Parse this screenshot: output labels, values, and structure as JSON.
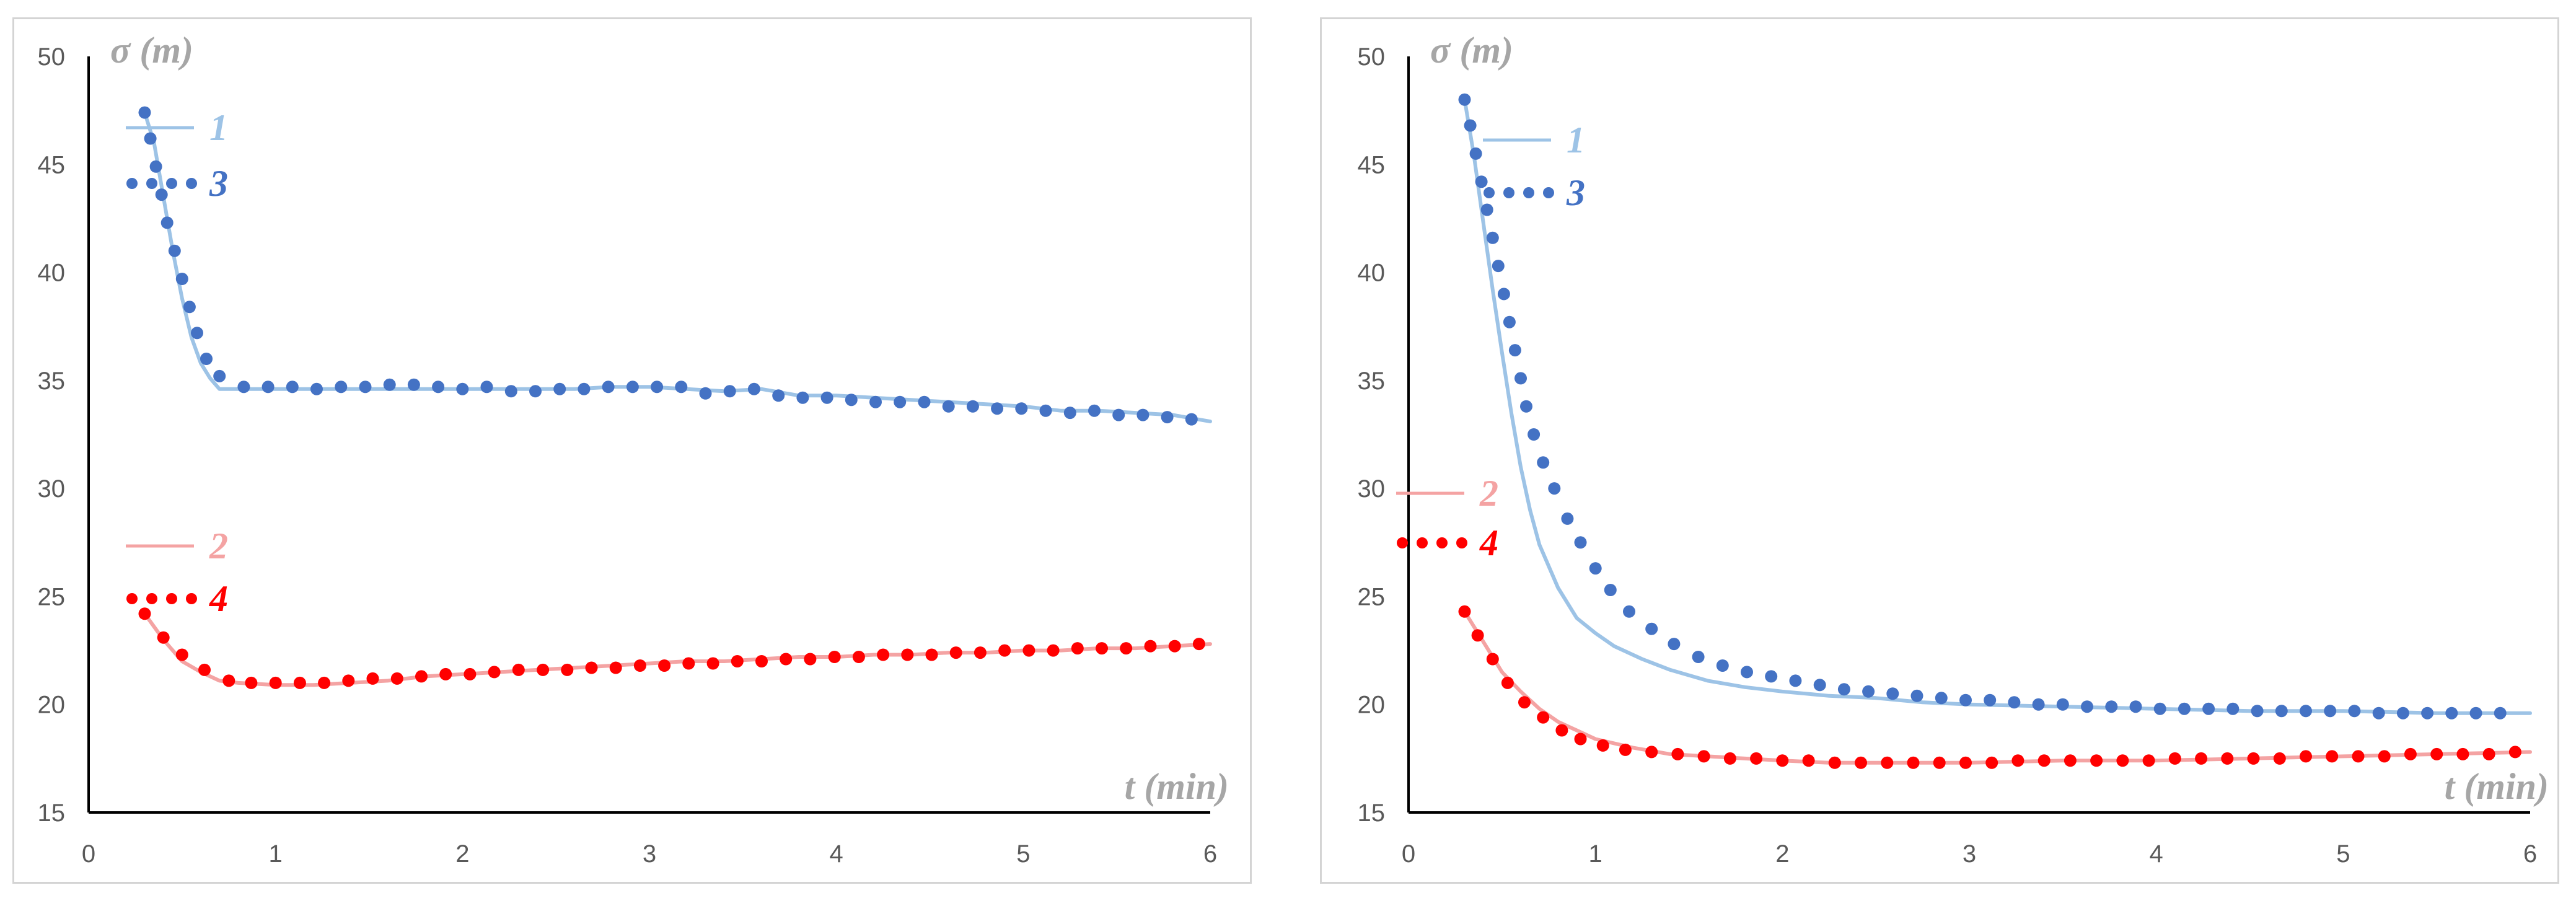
{
  "colors": {
    "curve1": "#9dc3e6",
    "curve2": "#f4a3a3",
    "curve3": "#4472c4",
    "curve4": "#ff0000",
    "axis": "#000000",
    "tick": "#595959",
    "title": "#a6a6a6"
  },
  "chart_data": [
    {
      "type": "line",
      "xlabel": "t (min)",
      "ylabel": "σ (m)",
      "xlim": [
        0,
        6
      ],
      "ylim": [
        15,
        50
      ],
      "xticks": [
        "0",
        "1",
        "2",
        "3",
        "4",
        "5",
        "6"
      ],
      "yticks": [
        "15",
        "20",
        "25",
        "30",
        "35",
        "40",
        "45",
        "50"
      ],
      "legend": [
        {
          "id": "1",
          "label": "1",
          "style": "line"
        },
        {
          "id": "3",
          "label": "3",
          "style": "dots"
        },
        {
          "id": "2",
          "label": "2",
          "style": "line"
        },
        {
          "id": "4",
          "label": "4",
          "style": "dots"
        }
      ],
      "series": [
        {
          "name": "1",
          "style": "line",
          "x": [
            0.3,
            0.35,
            0.4,
            0.45,
            0.5,
            0.55,
            0.6,
            0.65,
            0.7,
            0.8,
            1,
            1.2,
            1.4,
            1.6,
            1.8,
            2,
            2.2,
            2.4,
            2.6,
            2.8,
            3,
            3.2,
            3.4,
            3.6,
            3.8,
            4,
            4.2,
            4.4,
            4.6,
            4.8,
            5,
            5.2,
            5.4,
            5.6,
            5.8,
            6
          ],
          "y": [
            47.4,
            46.0,
            43.5,
            41.0,
            38.8,
            37.0,
            35.8,
            35.1,
            34.6,
            34.6,
            34.6,
            34.6,
            34.6,
            34.6,
            34.6,
            34.6,
            34.6,
            34.6,
            34.6,
            34.7,
            34.7,
            34.6,
            34.5,
            34.6,
            34.3,
            34.3,
            34.2,
            34.1,
            34.0,
            33.9,
            33.8,
            33.6,
            33.6,
            33.5,
            33.4,
            33.1
          ]
        },
        {
          "name": "3",
          "style": "dots",
          "x": [
            0.3,
            0.33,
            0.36,
            0.39,
            0.42,
            0.46,
            0.5,
            0.54,
            0.58,
            0.63,
            0.7,
            0.83,
            0.96,
            1.09,
            1.22,
            1.35,
            1.48,
            1.61,
            1.74,
            1.87,
            2.0,
            2.13,
            2.26,
            2.39,
            2.52,
            2.65,
            2.78,
            2.91,
            3.04,
            3.17,
            3.3,
            3.43,
            3.56,
            3.69,
            3.82,
            3.95,
            4.08,
            4.21,
            4.34,
            4.47,
            4.6,
            4.73,
            4.86,
            4.99,
            5.12,
            5.25,
            5.38,
            5.51,
            5.64,
            5.77,
            5.9
          ],
          "y": [
            47.4,
            46.2,
            44.9,
            43.6,
            42.3,
            41.0,
            39.7,
            38.4,
            37.2,
            36.0,
            35.2,
            34.7,
            34.7,
            34.7,
            34.6,
            34.7,
            34.7,
            34.8,
            34.8,
            34.7,
            34.6,
            34.7,
            34.5,
            34.5,
            34.6,
            34.6,
            34.7,
            34.7,
            34.7,
            34.7,
            34.4,
            34.5,
            34.6,
            34.3,
            34.2,
            34.2,
            34.1,
            34.0,
            34.0,
            34.0,
            33.8,
            33.8,
            33.7,
            33.7,
            33.6,
            33.5,
            33.6,
            33.4,
            33.4,
            33.3,
            33.2
          ]
        },
        {
          "name": "2",
          "style": "line",
          "x": [
            0.3,
            0.4,
            0.5,
            0.6,
            0.7,
            0.8,
            1.0,
            1.2,
            1.4,
            1.6,
            1.8,
            2.0,
            2.2,
            2.4,
            2.6,
            2.8,
            3.0,
            3.2,
            3.4,
            3.6,
            3.8,
            4.0,
            4.2,
            4.4,
            4.6,
            4.8,
            5.0,
            5.2,
            5.4,
            5.6,
            5.8,
            6.0
          ],
          "y": [
            24.2,
            23.0,
            22.0,
            21.5,
            21.1,
            21.0,
            20.9,
            20.9,
            21.0,
            21.1,
            21.3,
            21.4,
            21.5,
            21.6,
            21.7,
            21.8,
            21.9,
            22.0,
            22.0,
            22.1,
            22.2,
            22.2,
            22.3,
            22.3,
            22.4,
            22.4,
            22.5,
            22.5,
            22.6,
            22.6,
            22.7,
            22.8
          ]
        },
        {
          "name": "4",
          "style": "dots",
          "x": [
            0.3,
            0.4,
            0.5,
            0.62,
            0.75,
            0.87,
            1.0,
            1.13,
            1.26,
            1.39,
            1.52,
            1.65,
            1.78,
            1.91,
            2.04,
            2.17,
            2.3,
            2.43,
            2.56,
            2.69,
            2.82,
            2.95,
            3.08,
            3.21,
            3.34,
            3.47,
            3.6,
            3.73,
            3.86,
            3.99,
            4.12,
            4.25,
            4.38,
            4.51,
            4.64,
            4.77,
            4.9,
            5.03,
            5.16,
            5.29,
            5.42,
            5.55,
            5.68,
            5.81,
            5.94
          ],
          "y": [
            24.2,
            23.1,
            22.3,
            21.6,
            21.1,
            21.0,
            21.0,
            21.0,
            21.0,
            21.1,
            21.2,
            21.2,
            21.3,
            21.4,
            21.4,
            21.5,
            21.6,
            21.6,
            21.6,
            21.7,
            21.7,
            21.8,
            21.8,
            21.9,
            21.9,
            22.0,
            22.0,
            22.1,
            22.1,
            22.2,
            22.2,
            22.3,
            22.3,
            22.3,
            22.4,
            22.4,
            22.5,
            22.5,
            22.5,
            22.6,
            22.6,
            22.6,
            22.7,
            22.7,
            22.8
          ]
        }
      ]
    },
    {
      "type": "line",
      "xlabel": "t (min)",
      "ylabel": "σ (m)",
      "xlim": [
        0,
        6
      ],
      "ylim": [
        15,
        50
      ],
      "xticks": [
        "0",
        "1",
        "2",
        "3",
        "4",
        "5",
        "6"
      ],
      "yticks": [
        "15",
        "20",
        "25",
        "30",
        "35",
        "40",
        "45",
        "50"
      ],
      "legend": [
        {
          "id": "1",
          "label": "1",
          "style": "line"
        },
        {
          "id": "3",
          "label": "3",
          "style": "dots"
        },
        {
          "id": "2",
          "label": "2",
          "style": "line"
        },
        {
          "id": "4",
          "label": "4",
          "style": "dots"
        }
      ],
      "series": [
        {
          "name": "1",
          "style": "line",
          "x": [
            0.3,
            0.35,
            0.4,
            0.45,
            0.5,
            0.55,
            0.6,
            0.65,
            0.7,
            0.8,
            0.9,
            1.0,
            1.1,
            1.25,
            1.4,
            1.6,
            1.8,
            2.0,
            2.25,
            2.5,
            2.75,
            3.0,
            3.5,
            4.0,
            4.5,
            5.0,
            5.5,
            6.0
          ],
          "y": [
            48.0,
            45.4,
            42.3,
            39.2,
            36.3,
            33.5,
            31.0,
            29.0,
            27.4,
            25.4,
            24.0,
            23.3,
            22.7,
            22.1,
            21.6,
            21.1,
            20.8,
            20.6,
            20.4,
            20.3,
            20.1,
            20.0,
            19.9,
            19.8,
            19.7,
            19.7,
            19.6,
            19.6
          ]
        },
        {
          "name": "3",
          "style": "dots",
          "x": [
            0.3,
            0.33,
            0.36,
            0.39,
            0.42,
            0.45,
            0.48,
            0.51,
            0.54,
            0.57,
            0.6,
            0.63,
            0.67,
            0.72,
            0.78,
            0.85,
            0.92,
            1.0,
            1.08,
            1.18,
            1.3,
            1.42,
            1.55,
            1.68,
            1.81,
            1.94,
            2.07,
            2.2,
            2.33,
            2.46,
            2.59,
            2.72,
            2.85,
            2.98,
            3.11,
            3.24,
            3.37,
            3.5,
            3.63,
            3.76,
            3.89,
            4.02,
            4.15,
            4.28,
            4.41,
            4.54,
            4.67,
            4.8,
            4.93,
            5.06,
            5.19,
            5.32,
            5.45,
            5.58,
            5.71,
            5.84
          ],
          "y": [
            48.0,
            46.8,
            45.5,
            44.2,
            42.9,
            41.6,
            40.3,
            39.0,
            37.7,
            36.4,
            35.1,
            33.8,
            32.5,
            31.2,
            30.0,
            28.6,
            27.5,
            26.3,
            25.3,
            24.3,
            23.5,
            22.8,
            22.2,
            21.8,
            21.5,
            21.3,
            21.1,
            20.9,
            20.7,
            20.6,
            20.5,
            20.4,
            20.3,
            20.2,
            20.2,
            20.1,
            20.0,
            20.0,
            19.9,
            19.9,
            19.9,
            19.8,
            19.8,
            19.8,
            19.8,
            19.7,
            19.7,
            19.7,
            19.7,
            19.7,
            19.6,
            19.6,
            19.6,
            19.6,
            19.6,
            19.6
          ]
        },
        {
          "name": "2",
          "style": "line",
          "x": [
            0.3,
            0.35,
            0.4,
            0.45,
            0.5,
            0.6,
            0.7,
            0.8,
            0.9,
            1.0,
            1.2,
            1.4,
            1.6,
            1.8,
            2.0,
            2.25,
            2.5,
            2.75,
            3.0,
            3.5,
            4.0,
            4.5,
            5.0,
            5.5,
            6.0
          ],
          "y": [
            24.3,
            23.6,
            22.9,
            22.2,
            21.5,
            20.6,
            19.8,
            19.2,
            18.8,
            18.4,
            18.0,
            17.7,
            17.6,
            17.5,
            17.4,
            17.3,
            17.3,
            17.3,
            17.3,
            17.4,
            17.4,
            17.5,
            17.6,
            17.7,
            17.8
          ]
        },
        {
          "name": "4",
          "style": "dots",
          "x": [
            0.3,
            0.37,
            0.45,
            0.53,
            0.62,
            0.72,
            0.82,
            0.92,
            1.04,
            1.16,
            1.3,
            1.44,
            1.58,
            1.72,
            1.86,
            2.0,
            2.14,
            2.28,
            2.42,
            2.56,
            2.7,
            2.84,
            2.98,
            3.12,
            3.26,
            3.4,
            3.54,
            3.68,
            3.82,
            3.96,
            4.1,
            4.24,
            4.38,
            4.52,
            4.66,
            4.8,
            4.94,
            5.08,
            5.22,
            5.36,
            5.5,
            5.64,
            5.78,
            5.92
          ],
          "y": [
            24.3,
            23.2,
            22.1,
            21.0,
            20.1,
            19.4,
            18.8,
            18.4,
            18.1,
            17.9,
            17.8,
            17.7,
            17.6,
            17.5,
            17.5,
            17.4,
            17.4,
            17.3,
            17.3,
            17.3,
            17.3,
            17.3,
            17.3,
            17.3,
            17.4,
            17.4,
            17.4,
            17.4,
            17.4,
            17.4,
            17.5,
            17.5,
            17.5,
            17.5,
            17.5,
            17.6,
            17.6,
            17.6,
            17.6,
            17.7,
            17.7,
            17.7,
            17.7,
            17.8
          ]
        }
      ]
    }
  ]
}
